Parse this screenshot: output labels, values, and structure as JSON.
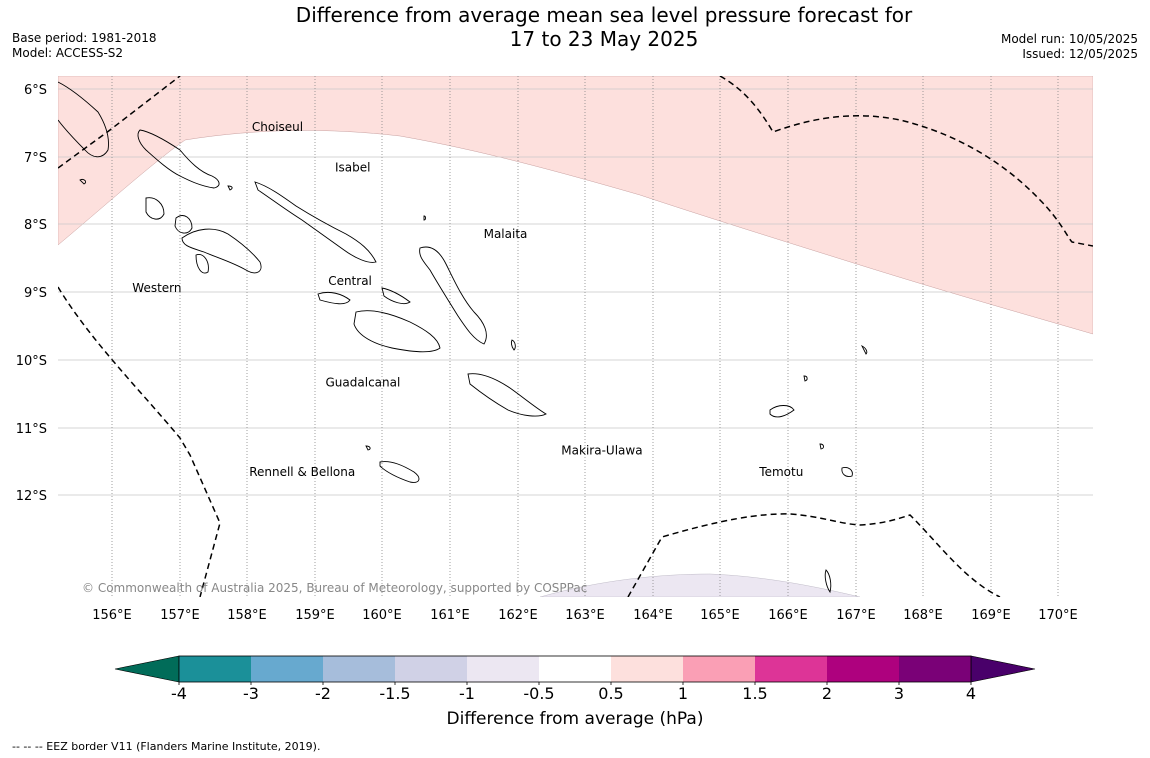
{
  "header": {
    "title_line1": "Difference from average mean sea level pressure forecast for",
    "title_line2": "17 to 23 May 2025",
    "base_period": "Base period: 1981-2018",
    "model": "Model: ACCESS-S2",
    "model_run": "Model run: 10/05/2025",
    "issued": "Issued: 12/05/2025"
  },
  "map": {
    "lat_labels": [
      "6°S",
      "7°S",
      "8°S",
      "9°S",
      "10°S",
      "11°S",
      "12°S"
    ],
    "lon_labels": [
      "156°E",
      "157°E",
      "158°E",
      "159°E",
      "160°E",
      "161°E",
      "162°E",
      "163°E",
      "164°E",
      "165°E",
      "166°E",
      "167°E",
      "168°E",
      "169°E",
      "170°E"
    ],
    "regions": [
      {
        "name": "Choiseul",
        "lon": 158.07,
        "lat": -6.62
      },
      {
        "name": "Isabel",
        "lon": 159.3,
        "lat": -7.22
      },
      {
        "name": "Malaita",
        "lon": 161.5,
        "lat": -8.2
      },
      {
        "name": "Western",
        "lon": 156.3,
        "lat": -9.0
      },
      {
        "name": "Central",
        "lon": 159.2,
        "lat": -8.9
      },
      {
        "name": "Guadalcanal",
        "lon": 159.16,
        "lat": -10.4
      },
      {
        "name": "Makira-Ulawa",
        "lon": 162.65,
        "lat": -11.4
      },
      {
        "name": "Temotu",
        "lon": 165.58,
        "lat": -11.72
      },
      {
        "name": "Rennell & Bellona",
        "lon": 158.03,
        "lat": -11.72
      }
    ],
    "copyright": "© Commonwealth of Australia 2025, Bureau of Meteorology, supported by COSPPac"
  },
  "colorbar": {
    "ticks": [
      "-4",
      "-3",
      "-2",
      "-1.5",
      "-1",
      "-0.5",
      "0.5",
      "1",
      "1.5",
      "2",
      "3",
      "4"
    ],
    "colors": [
      "#1b9099",
      "#67a9cf",
      "#a6bddb",
      "#d0d1e6",
      "#ece7f2",
      "#ffffff",
      "#fde0dd",
      "#fa9fb5",
      "#dd3497",
      "#ae017e",
      "#7a0177"
    ],
    "under_color": "#016c59",
    "over_color": "#49006a",
    "label": "Difference from average (hPa)"
  },
  "eez_note": "--  --  -- EEZ border V11 (Flanders Marine Institute, 2019)."
}
